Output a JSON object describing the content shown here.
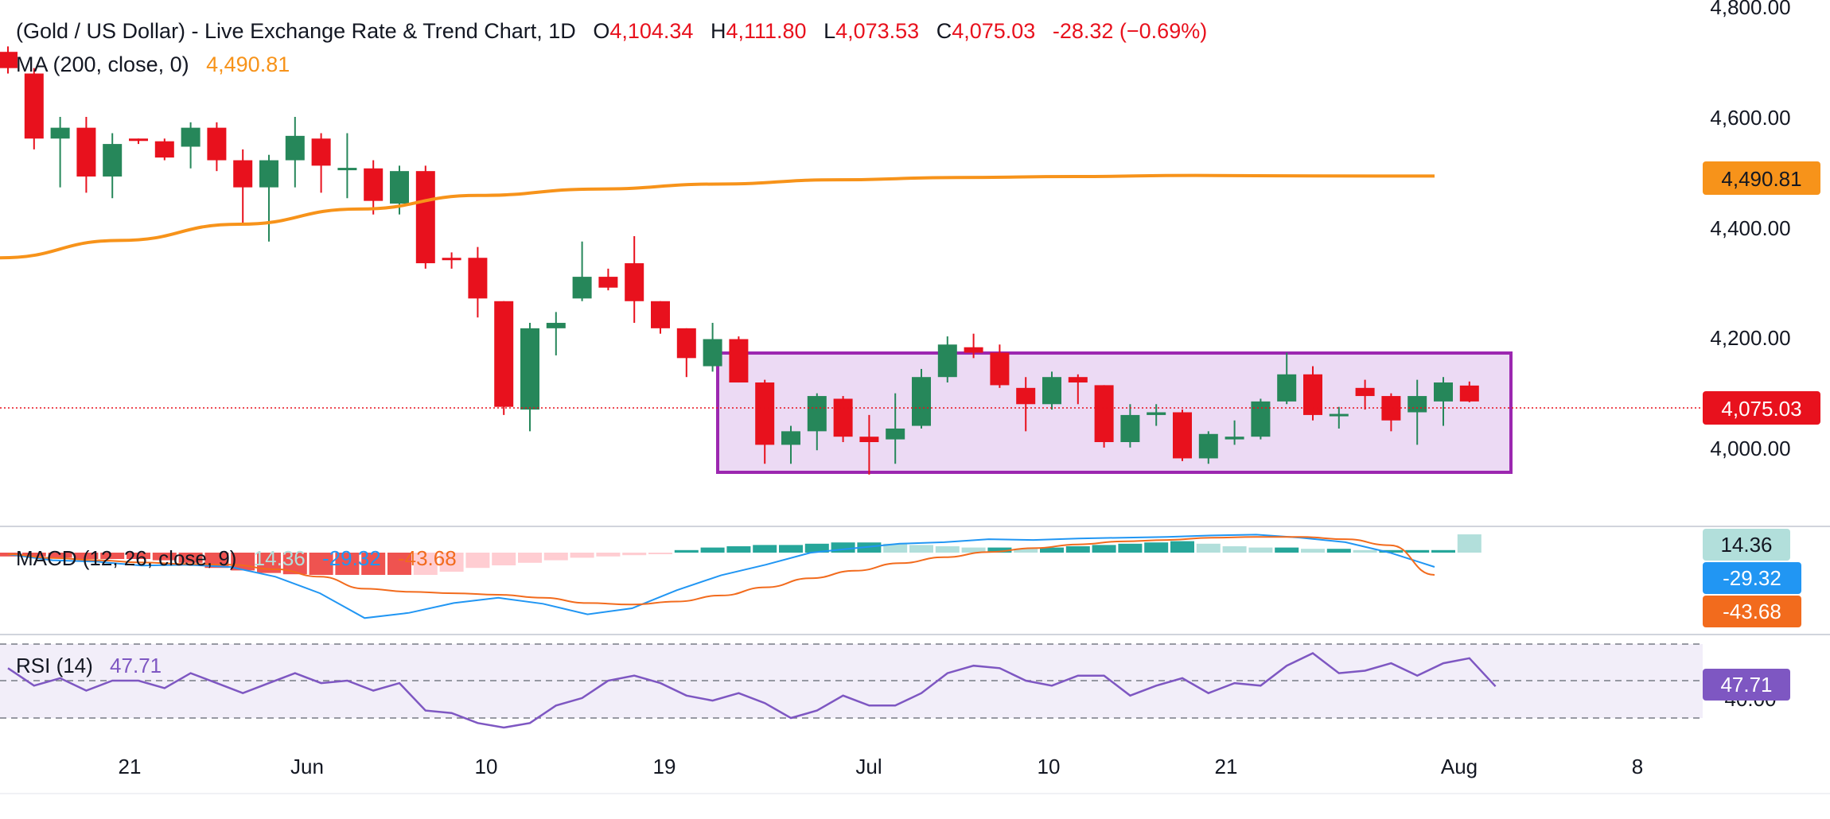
{
  "header": {
    "symbol": "(Gold / US Dollar) - Live Exchange Rate & Trend Chart, 1D",
    "o_label": "O",
    "o_value": "4,104.34",
    "h_label": "H",
    "h_value": "4,111.80",
    "l_label": "L",
    "l_value": "4,073.53",
    "c_label": "C",
    "c_value": "4,075.03",
    "change": "-28.32 (−0.69%)"
  },
  "ma_legend": {
    "label": "MA (200, close, 0)",
    "value": "4,490.81"
  },
  "macd_legend": {
    "label": "MACD (12, 26, close, 9)",
    "hist": "14.36",
    "macd": "-29.32",
    "signal": "-43.68"
  },
  "rsi_legend": {
    "label": "RSI (14)",
    "value": "47.71"
  },
  "badges": {
    "ma": "4,490.81",
    "last": "4,075.03",
    "hist": "14.36",
    "macd": "-29.32",
    "signal": "-43.68",
    "rsi": "47.71",
    "rsi_hidden": "40.00"
  },
  "colors": {
    "up": "#26875a",
    "down": "#e8111d",
    "ma": "#f7931a",
    "macd": "#2196f3",
    "signal": "#f26b1d",
    "rsi": "#7e57c2",
    "box_fill": "#e9d3f2",
    "box_stroke": "#9c27b0",
    "hist_pos_strong": "#26a69a",
    "hist_pos_weak": "#b2dfdb",
    "hist_neg_strong": "#ef5350",
    "hist_neg_weak": "#ffcdd2"
  },
  "y_axis_ticks": [
    "4,800.00",
    "4,600.00",
    "4,400.00",
    "4,200.00",
    "4,000.00"
  ],
  "x_axis_ticks": [
    "21",
    "Jun",
    "10",
    "19",
    "Jul",
    "10",
    "21",
    "Aug",
    "8"
  ],
  "chart_data": [
    {
      "type": "candlestick",
      "title": "(Gold / US Dollar) - Live Exchange Rate & Trend Chart, 1D",
      "ylim": [
        3880,
        4800
      ],
      "candles": [
        {
          "o": 4720,
          "h": 4730,
          "l": 4680,
          "c": 4690
        },
        {
          "o": 4680,
          "h": 4690,
          "l": 4540,
          "c": 4560
        },
        {
          "o": 4560,
          "h": 4600,
          "l": 4470,
          "c": 4580
        },
        {
          "o": 4580,
          "h": 4600,
          "l": 4460,
          "c": 4490
        },
        {
          "o": 4490,
          "h": 4570,
          "l": 4450,
          "c": 4550
        },
        {
          "o": 4560,
          "h": 4560,
          "l": 4550,
          "c": 4558
        },
        {
          "o": 4555,
          "h": 4560,
          "l": 4520,
          "c": 4525
        },
        {
          "o": 4545,
          "h": 4590,
          "l": 4505,
          "c": 4580
        },
        {
          "o": 4580,
          "h": 4590,
          "l": 4500,
          "c": 4520
        },
        {
          "o": 4520,
          "h": 4540,
          "l": 4400,
          "c": 4470
        },
        {
          "o": 4470,
          "h": 4530,
          "l": 4370,
          "c": 4520
        },
        {
          "o": 4520,
          "h": 4600,
          "l": 4470,
          "c": 4565
        },
        {
          "o": 4560,
          "h": 4570,
          "l": 4460,
          "c": 4510
        },
        {
          "o": 4505,
          "h": 4570,
          "l": 4450,
          "c": 4506
        },
        {
          "o": 4505,
          "h": 4520,
          "l": 4420,
          "c": 4445
        },
        {
          "o": 4440,
          "h": 4510,
          "l": 4420,
          "c": 4500
        },
        {
          "o": 4500,
          "h": 4510,
          "l": 4320,
          "c": 4330
        },
        {
          "o": 4340,
          "h": 4350,
          "l": 4320,
          "c": 4339
        },
        {
          "o": 4340,
          "h": 4360,
          "l": 4230,
          "c": 4265
        },
        {
          "o": 4260,
          "h": 4260,
          "l": 4050,
          "c": 4065
        },
        {
          "o": 4060,
          "h": 4220,
          "l": 4020,
          "c": 4210
        },
        {
          "o": 4210,
          "h": 4240,
          "l": 4160,
          "c": 4220
        },
        {
          "o": 4265,
          "h": 4370,
          "l": 4260,
          "c": 4305
        },
        {
          "o": 4305,
          "h": 4320,
          "l": 4280,
          "c": 4285
        },
        {
          "o": 4330,
          "h": 4380,
          "l": 4220,
          "c": 4260
        },
        {
          "o": 4260,
          "h": 4260,
          "l": 4200,
          "c": 4210
        },
        {
          "o": 4210,
          "h": 4210,
          "l": 4120,
          "c": 4155
        },
        {
          "o": 4140,
          "h": 4220,
          "l": 4130,
          "c": 4190
        },
        {
          "o": 4190,
          "h": 4195,
          "l": 4110,
          "c": 4110
        },
        {
          "o": 4110,
          "h": 4115,
          "l": 3960,
          "c": 3995
        },
        {
          "o": 3995,
          "h": 4030,
          "l": 3960,
          "c": 4020
        },
        {
          "o": 4020,
          "h": 4090,
          "l": 3985,
          "c": 4085
        },
        {
          "o": 4080,
          "h": 4085,
          "l": 4000,
          "c": 4010
        },
        {
          "o": 4010,
          "h": 4050,
          "l": 3940,
          "c": 4000
        },
        {
          "o": 4005,
          "h": 4090,
          "l": 3960,
          "c": 4025
        },
        {
          "o": 4030,
          "h": 4135,
          "l": 4025,
          "c": 4120
        },
        {
          "o": 4120,
          "h": 4195,
          "l": 4110,
          "c": 4180
        },
        {
          "o": 4175,
          "h": 4200,
          "l": 4155,
          "c": 4165
        },
        {
          "o": 4165,
          "h": 4180,
          "l": 4100,
          "c": 4105
        },
        {
          "o": 4100,
          "h": 4120,
          "l": 4020,
          "c": 4070
        },
        {
          "o": 4070,
          "h": 4130,
          "l": 4060,
          "c": 4120
        },
        {
          "o": 4120,
          "h": 4125,
          "l": 4070,
          "c": 4110
        },
        {
          "o": 4105,
          "h": 4105,
          "l": 3990,
          "c": 4000
        },
        {
          "o": 4000,
          "h": 4070,
          "l": 3990,
          "c": 4050
        },
        {
          "o": 4050,
          "h": 4070,
          "l": 4030,
          "c": 4055
        },
        {
          "o": 4055,
          "h": 4060,
          "l": 3965,
          "c": 3970
        },
        {
          "o": 3970,
          "h": 4020,
          "l": 3960,
          "c": 4015
        },
        {
          "o": 4005,
          "h": 4040,
          "l": 3995,
          "c": 4010
        },
        {
          "o": 4010,
          "h": 4080,
          "l": 4005,
          "c": 4075
        },
        {
          "o": 4075,
          "h": 4165,
          "l": 4070,
          "c": 4125
        },
        {
          "o": 4125,
          "h": 4140,
          "l": 4040,
          "c": 4050
        },
        {
          "o": 4050,
          "h": 4065,
          "l": 4025,
          "c": 4052
        },
        {
          "o": 4100,
          "h": 4115,
          "l": 4060,
          "c": 4085
        },
        {
          "o": 4085,
          "h": 4090,
          "l": 4020,
          "c": 4040
        },
        {
          "o": 4055,
          "h": 4115,
          "l": 3995,
          "c": 4085
        },
        {
          "o": 4075,
          "h": 4120,
          "l": 4030,
          "c": 4110
        },
        {
          "o": 4104.34,
          "h": 4111.8,
          "l": 4073.53,
          "c": 4075.03
        }
      ],
      "ma200": [
        4340,
        4372,
        4402,
        4430,
        4455,
        4467,
        4476,
        4484,
        4488,
        4490,
        4492,
        4491,
        4490.81
      ]
    },
    {
      "type": "macd",
      "macd": [
        -20,
        -28,
        -30,
        -35,
        -34,
        -37,
        -50,
        -72,
        -105,
        -98,
        -85,
        -78,
        -86,
        -100,
        -92,
        -68,
        -48,
        -34,
        -18,
        -12,
        -6,
        -4,
        0,
        -1,
        1,
        2,
        3,
        5,
        6,
        2,
        -4,
        -18,
        -29.32
      ],
      "signal": [
        -20,
        -25,
        -28,
        -31,
        -33,
        -34,
        -40,
        -50,
        -66,
        -70,
        -72,
        -74,
        -78,
        -85,
        -87,
        -83,
        -75,
        -64,
        -52,
        -42,
        -32,
        -24,
        -17,
        -12,
        -7,
        -3,
        -1,
        2,
        3,
        3,
        0,
        -8,
        -43.68
      ],
      "histogram": [
        -3,
        -3,
        -4,
        -5,
        -5,
        -5,
        -6,
        -8,
        -12,
        -14,
        -16,
        -17,
        -18,
        -18,
        -20,
        -22,
        -20,
        -15,
        -12,
        -10,
        -8,
        -6,
        -4,
        -3,
        -2,
        -1,
        2,
        4,
        5,
        6,
        6,
        7,
        8,
        8,
        7,
        6,
        5,
        4,
        4,
        3,
        4,
        5,
        6,
        7,
        8,
        9,
        7,
        5,
        4,
        4,
        3,
        3,
        2,
        2,
        2,
        2,
        14.36
      ]
    },
    {
      "type": "line",
      "name": "RSI (14)",
      "ylim": [
        20,
        80
      ],
      "values": [
        55,
        48,
        51,
        46,
        50,
        50,
        47,
        53,
        49,
        45,
        49,
        53,
        49,
        50,
        46,
        49,
        38,
        37,
        33,
        20,
        33,
        40,
        43,
        50,
        52,
        49,
        44,
        42,
        45,
        41,
        35,
        38,
        44,
        40,
        40,
        45,
        53,
        56,
        55,
        50,
        48,
        52,
        52,
        44,
        48,
        51,
        45,
        49,
        48,
        56,
        61,
        53,
        54,
        57,
        52,
        57,
        59,
        47.71
      ]
    }
  ]
}
